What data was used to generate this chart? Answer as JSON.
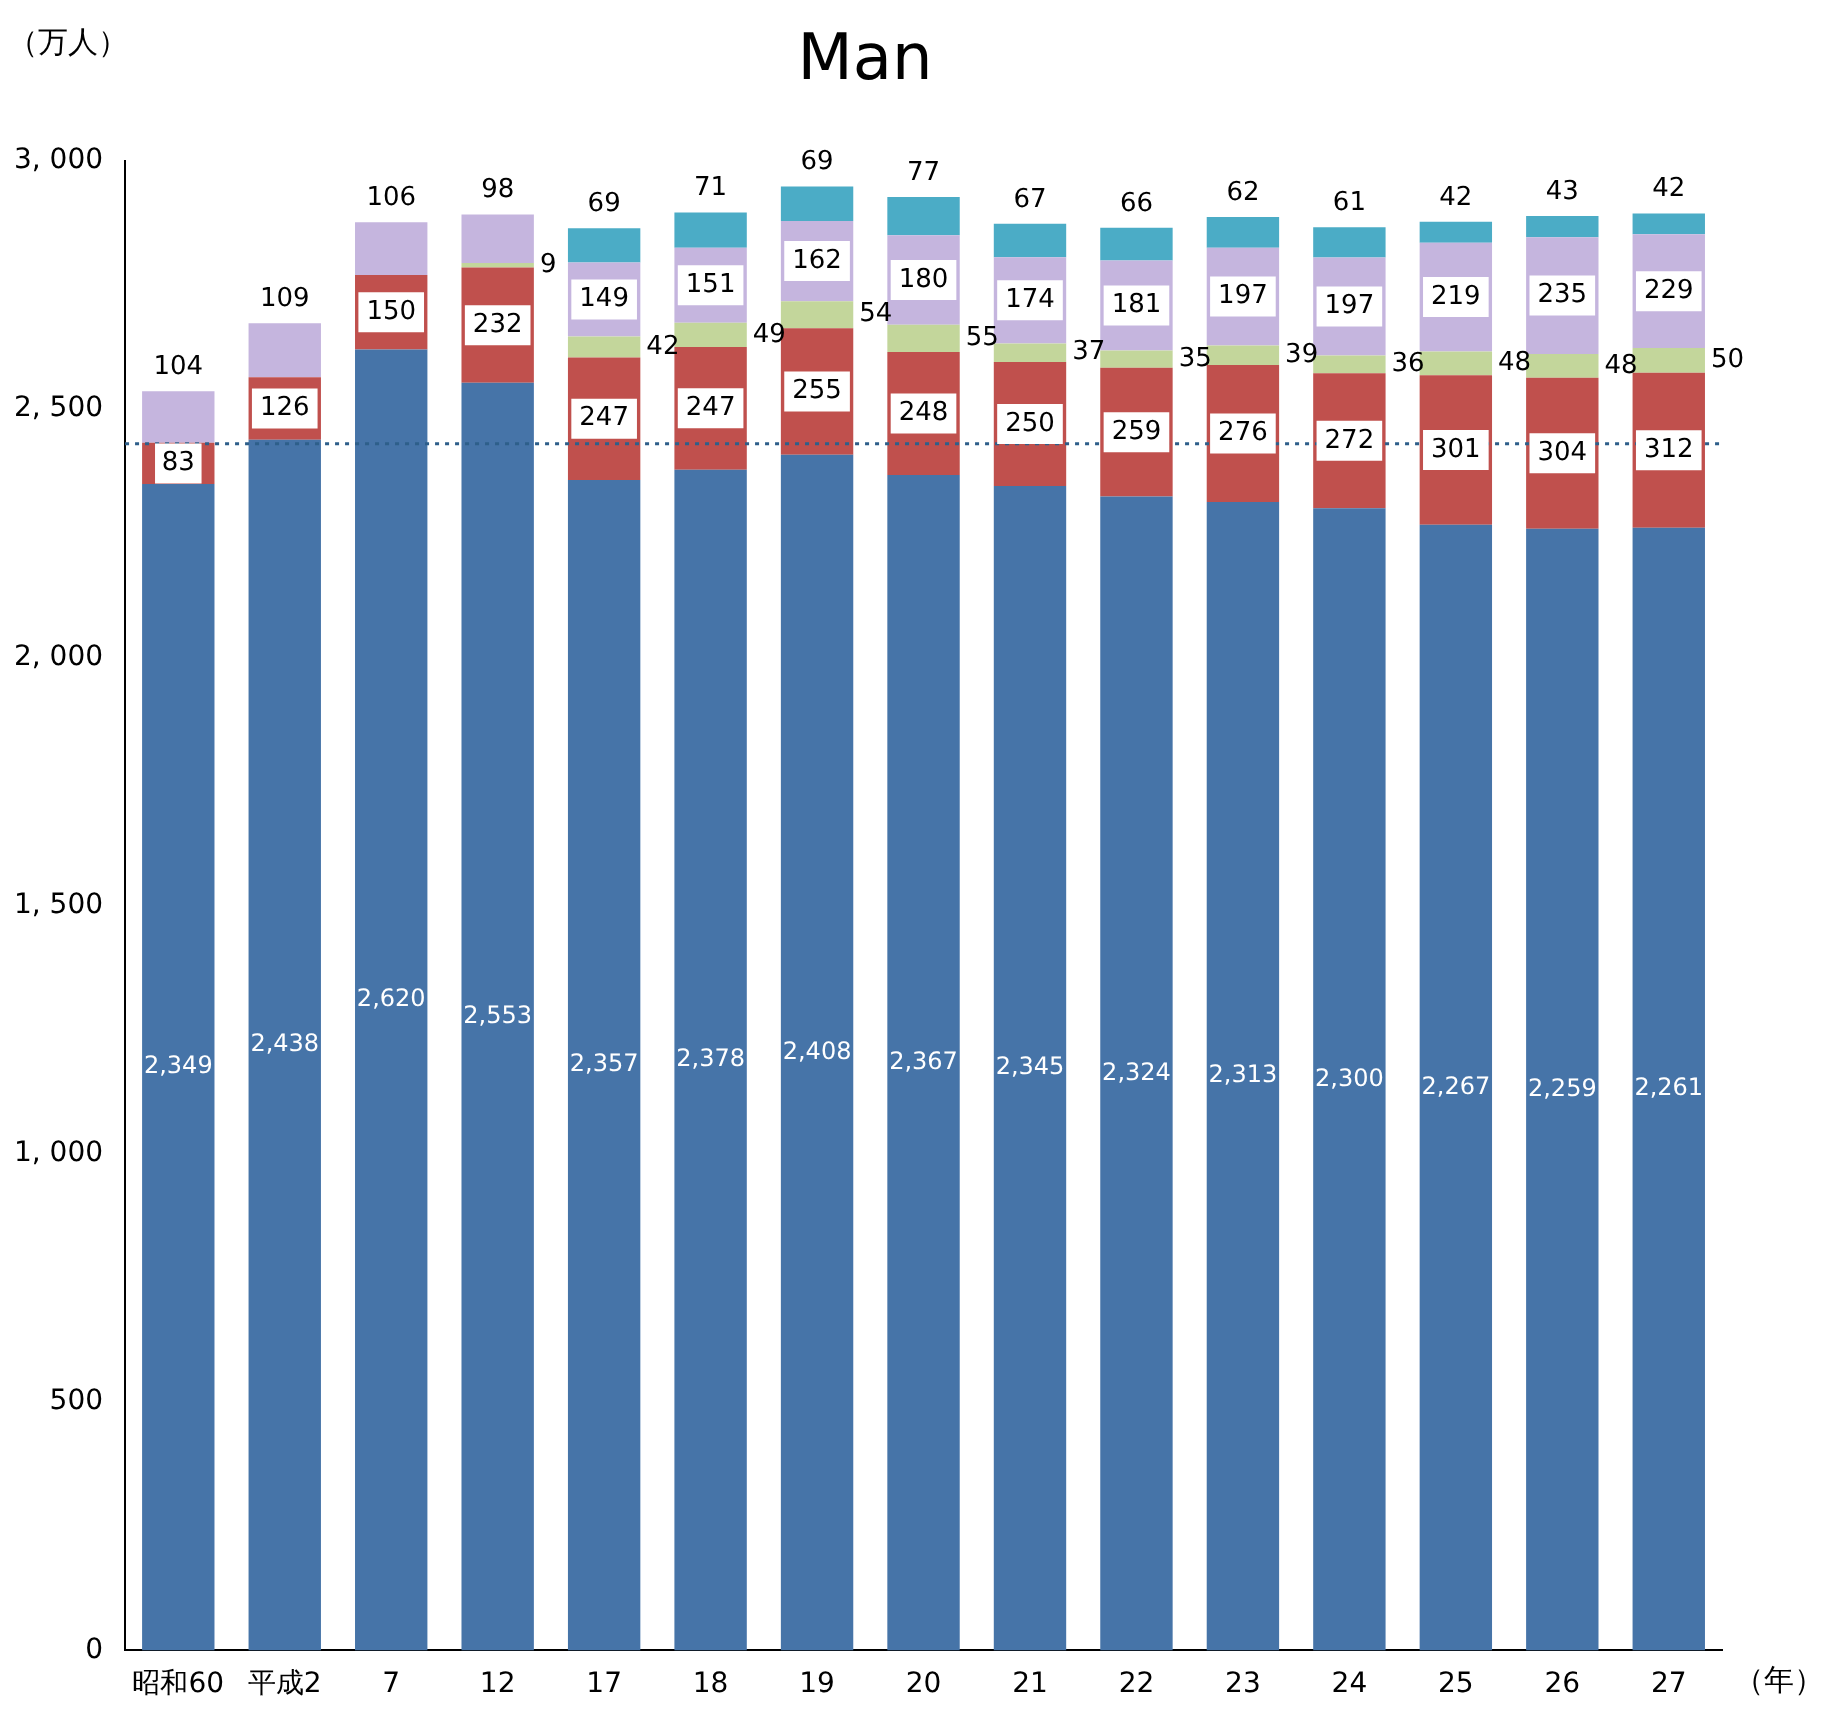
{
  "chart_data": {
    "type": "bar",
    "title": "Man",
    "ylabel": "（万人）",
    "xlabel": "（年）",
    "stacked": true,
    "categories": [
      "昭和60",
      "平成2",
      "7",
      "12",
      "17",
      "18",
      "19",
      "20",
      "21",
      "22",
      "23",
      "24",
      "25",
      "26",
      "27"
    ],
    "ylim": [
      0,
      3000
    ],
    "yticks": [
      {
        "value": 0,
        "label": "0"
      },
      {
        "value": 500,
        "label": "500"
      },
      {
        "value": 1000,
        "label": "1, 000"
      },
      {
        "value": 1500,
        "label": "1, 500"
      },
      {
        "value": 2000,
        "label": "2, 000"
      },
      {
        "value": 2500,
        "label": "2, 500"
      },
      {
        "value": 3000,
        "label": "3, 000"
      }
    ],
    "grid": false,
    "legend": false,
    "ref_lines": [
      {
        "axis": "y",
        "value": 2430,
        "color": "#2e5f8a",
        "line_style": "dotted"
      }
    ],
    "series": [
      {
        "color": "#4674a8",
        "values": [
          2349,
          2438,
          2620,
          2553,
          2357,
          2378,
          2408,
          2367,
          2345,
          2324,
          2313,
          2300,
          2267,
          2259,
          2261
        ],
        "value_labels": [
          "2,349",
          "2,438",
          "2,620",
          "2,553",
          "2,357",
          "2,378",
          "2,408",
          "2,367",
          "2,345",
          "2,324",
          "2,313",
          "2,300",
          "2,267",
          "2,259",
          "2,261"
        ]
      },
      {
        "color": "#c0504d",
        "values": [
          83,
          126,
          150,
          232,
          247,
          247,
          255,
          248,
          250,
          259,
          276,
          272,
          301,
          304,
          312
        ],
        "value_labels": [
          "83",
          "126",
          "150",
          "232",
          "247",
          "247",
          "255",
          "248",
          "250",
          "259",
          "276",
          "272",
          "301",
          "304",
          "312"
        ]
      },
      {
        "color": "#c3d69b",
        "values": [
          null,
          null,
          null,
          9,
          42,
          49,
          54,
          55,
          37,
          35,
          39,
          36,
          48,
          48,
          50
        ],
        "value_labels": [
          null,
          null,
          null,
          "9",
          "42",
          "49",
          "54",
          "55",
          "37",
          "35",
          "39",
          "36",
          "48",
          "48",
          "50"
        ]
      },
      {
        "color": "#c5b5de",
        "values": [
          104,
          109,
          106,
          98,
          149,
          151,
          162,
          180,
          174,
          181,
          197,
          197,
          219,
          235,
          229
        ],
        "value_labels": [
          "104",
          "109",
          "106",
          "98",
          "149",
          "151",
          "162",
          "180",
          "174",
          "181",
          "197",
          "197",
          "219",
          "235",
          "229"
        ]
      },
      {
        "color": "#4bacc6",
        "values": [
          null,
          null,
          null,
          null,
          69,
          71,
          69,
          77,
          67,
          66,
          62,
          61,
          42,
          43,
          42
        ],
        "value_labels": [
          null,
          null,
          null,
          null,
          "69",
          "71",
          "69",
          "77",
          "67",
          "66",
          "62",
          "61",
          "42",
          "43",
          "42"
        ]
      }
    ]
  }
}
